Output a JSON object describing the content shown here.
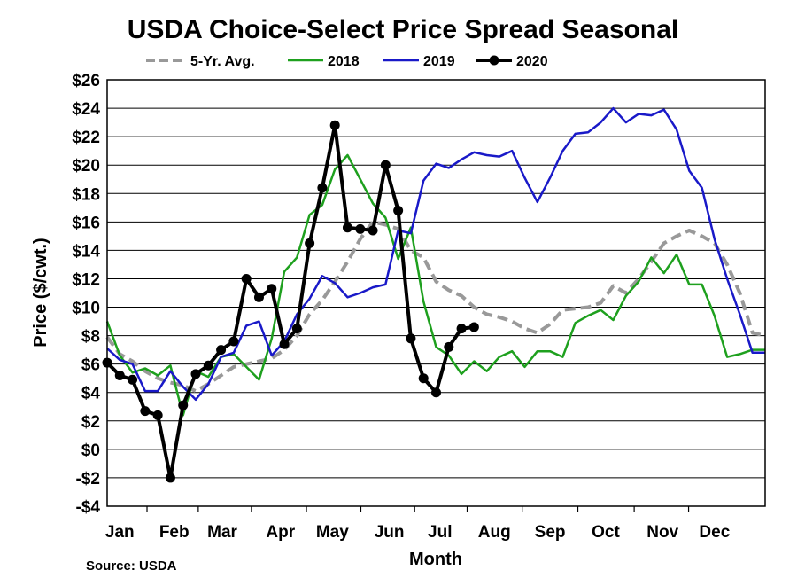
{
  "chart_data": {
    "type": "line",
    "title": "USDA Choice-Select Price Spread Seasonal",
    "xlabel": "Month",
    "ylabel": "Price ($/cwt.)",
    "source": "Source: USDA",
    "ylim": [
      -4,
      26
    ],
    "xlim": [
      0,
      52
    ],
    "grid": "horizontal",
    "legend_position": "top",
    "x_tick_labels": [
      "Jan",
      "Feb",
      "Mar",
      "Apr",
      "May",
      "Jun",
      "Jul",
      "Aug",
      "Sep",
      "Oct",
      "Nov",
      "Dec"
    ],
    "x_tick_weeks": [
      1,
      5.3,
      9.1,
      13.7,
      17.8,
      22.3,
      26.3,
      30.6,
      35,
      39.4,
      43.9,
      48
    ],
    "y_ticks": [
      -4,
      -2,
      0,
      2,
      4,
      6,
      8,
      10,
      12,
      14,
      16,
      18,
      20,
      22,
      24,
      26
    ],
    "y_tick_labels": [
      "-$4",
      "-$2",
      "$0",
      "$2",
      "$4",
      "$6",
      "$8",
      "$10",
      "$12",
      "$14",
      "$16",
      "$18",
      "$20",
      "$22",
      "$24",
      "$26"
    ],
    "series": [
      {
        "name": "5-Yr. Avg.",
        "color": "#999999",
        "style": "dashed",
        "x": [
          0,
          1,
          2,
          3,
          4,
          5,
          6,
          7,
          8,
          9,
          10,
          11,
          12,
          13,
          14,
          15,
          16,
          17,
          18,
          19,
          20,
          21,
          22,
          23,
          24,
          25,
          26,
          27,
          28,
          29,
          30,
          31,
          32,
          33,
          34,
          35,
          36,
          37,
          38,
          39,
          40,
          41,
          42,
          43,
          44,
          45,
          46,
          47,
          48,
          49,
          50,
          51,
          52
        ],
        "y": [
          7.9,
          6.7,
          6.2,
          5.5,
          5.0,
          4.7,
          4.5,
          4.1,
          4.6,
          5.2,
          5.8,
          6.0,
          6.2,
          6.4,
          7.0,
          8.0,
          9.5,
          10.5,
          11.8,
          13.2,
          14.8,
          16.0,
          15.8,
          15.5,
          14.0,
          13.5,
          11.8,
          11.2,
          10.8,
          10.0,
          9.5,
          9.3,
          9.0,
          8.5,
          8.2,
          8.8,
          9.8,
          9.9,
          10.0,
          10.3,
          11.5,
          11.0,
          12.0,
          13.2,
          14.5,
          15.0,
          15.4,
          15.0,
          14.5,
          13.0,
          11.0,
          8.2,
          8.0
        ]
      },
      {
        "name": "2018",
        "color": "#1ea01e",
        "style": "solid",
        "x": [
          0,
          1,
          2,
          3,
          4,
          5,
          6,
          7,
          8,
          9,
          10,
          11,
          12,
          13,
          14,
          15,
          16,
          17,
          18,
          19,
          20,
          21,
          22,
          23,
          24,
          25,
          26,
          27,
          28,
          29,
          30,
          31,
          32,
          33,
          34,
          35,
          36,
          37,
          38,
          39,
          40,
          41,
          42,
          43,
          44,
          45,
          46,
          47,
          48,
          49,
          50,
          51,
          52
        ],
        "y": [
          9.0,
          6.6,
          5.4,
          5.7,
          5.2,
          5.9,
          2.4,
          5.5,
          5.1,
          6.5,
          6.7,
          5.8,
          4.9,
          7.8,
          12.5,
          13.5,
          16.5,
          17.2,
          19.7,
          20.7,
          19.0,
          17.3,
          16.3,
          13.4,
          15.6,
          10.4,
          7.2,
          6.6,
          5.3,
          6.2,
          5.5,
          6.5,
          6.9,
          5.8,
          6.9,
          6.9,
          6.5,
          8.9,
          9.4,
          9.8,
          9.1,
          10.8,
          11.8,
          13.5,
          12.4,
          13.7,
          11.6,
          11.6,
          9.4,
          6.5,
          6.7,
          7.0,
          7.0
        ]
      },
      {
        "name": "2019",
        "color": "#1919c8",
        "style": "solid",
        "x": [
          0,
          1,
          2,
          3,
          4,
          5,
          6,
          7,
          8,
          9,
          10,
          11,
          12,
          13,
          14,
          15,
          16,
          17,
          18,
          19,
          20,
          21,
          22,
          23,
          24,
          25,
          26,
          27,
          28,
          29,
          30,
          31,
          32,
          33,
          34,
          35,
          36,
          37,
          38,
          39,
          40,
          41,
          42,
          43,
          44,
          45,
          46,
          47,
          48,
          49,
          50,
          51,
          52
        ],
        "y": [
          7.1,
          6.3,
          6.0,
          4.1,
          4.1,
          5.5,
          4.4,
          3.5,
          4.6,
          6.5,
          6.8,
          8.7,
          9.0,
          6.6,
          7.6,
          9.5,
          10.6,
          12.2,
          11.7,
          10.7,
          11.0,
          11.4,
          11.6,
          15.4,
          15.2,
          18.9,
          20.1,
          19.8,
          20.4,
          20.9,
          20.7,
          20.6,
          21.0,
          19.1,
          17.4,
          19.1,
          21.0,
          22.2,
          22.3,
          23.0,
          24.0,
          23.0,
          23.6,
          23.5,
          23.9,
          22.5,
          19.6,
          18.4,
          14.8,
          12.0,
          9.5,
          6.8,
          6.8
        ]
      },
      {
        "name": "2020",
        "color": "#000000",
        "style": "solid-markers",
        "x": [
          0,
          1,
          2,
          3,
          4,
          5,
          6,
          7,
          8,
          9,
          10,
          11,
          12,
          13,
          14,
          15,
          16,
          17,
          18,
          19,
          20,
          21,
          22,
          23,
          24,
          25,
          26,
          27,
          28,
          29
        ],
        "y": [
          6.1,
          5.2,
          4.9,
          2.7,
          2.4,
          -2.0,
          3.1,
          5.3,
          5.9,
          7.0,
          7.6,
          12.0,
          10.7,
          11.3,
          7.4,
          8.5,
          14.5,
          18.4,
          22.8,
          15.6,
          15.5,
          15.4,
          20.0,
          16.8,
          7.8,
          5.0,
          4.0,
          7.2,
          8.5,
          8.6
        ]
      }
    ]
  }
}
